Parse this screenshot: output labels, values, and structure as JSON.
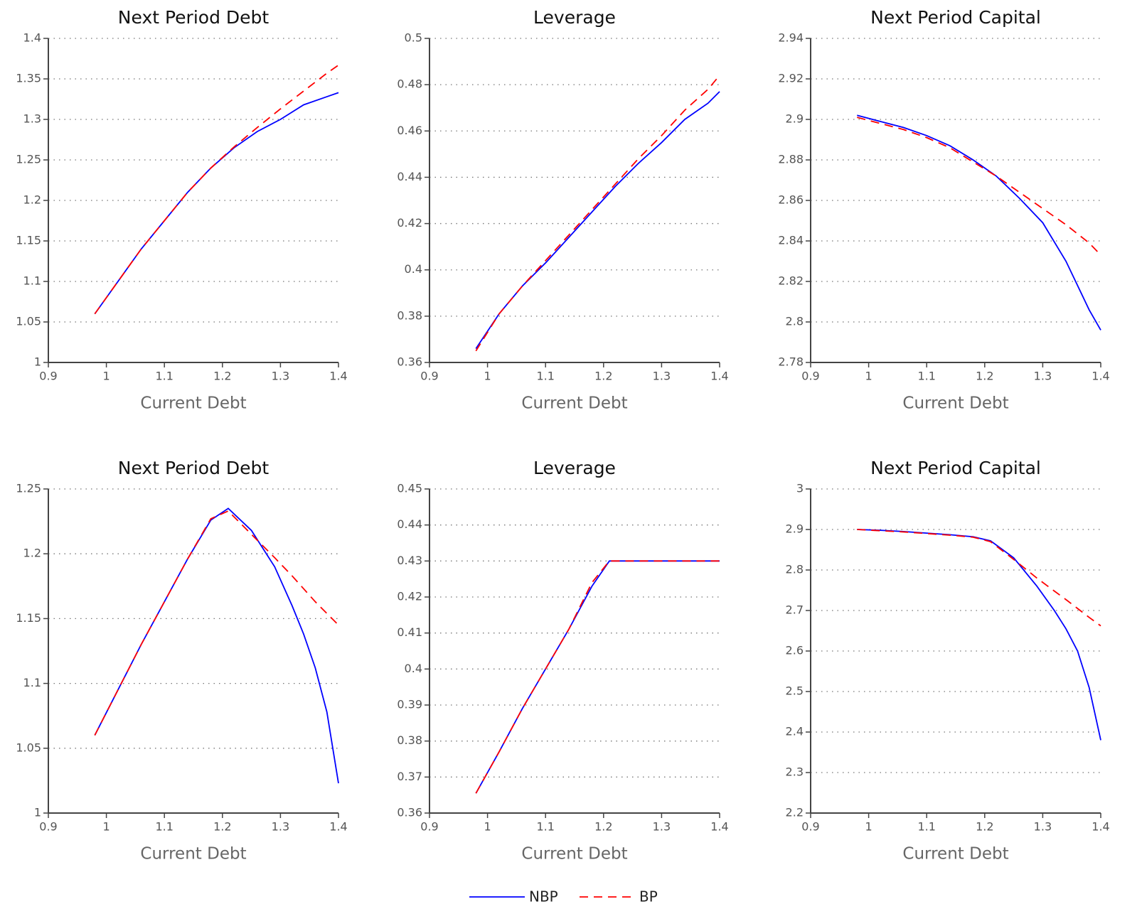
{
  "chart_data": [
    {
      "type": "line",
      "title": "Next Period Debt",
      "x_label": "Current Debt",
      "x": [
        0.98,
        1.02,
        1.06,
        1.1,
        1.14,
        1.18,
        1.22,
        1.26,
        1.3,
        1.34,
        1.38,
        1.4
      ],
      "series": [
        {
          "name": "NBP",
          "color": "#0000ff",
          "dash": "solid",
          "values": [
            1.06,
            1.1,
            1.14,
            1.175,
            1.21,
            1.24,
            1.265,
            1.285,
            1.3,
            1.318,
            1.328,
            1.333
          ]
        },
        {
          "name": "BP",
          "color": "#ff0000",
          "dash": "dashed",
          "values": [
            1.06,
            1.1,
            1.14,
            1.175,
            1.21,
            1.24,
            1.266,
            1.29,
            1.313,
            1.335,
            1.357,
            1.367
          ]
        }
      ],
      "xlim": [
        0.9,
        1.4
      ],
      "xticks": [
        0.9,
        1,
        1.1,
        1.2,
        1.3,
        1.4
      ],
      "ylim": [
        1,
        1.4
      ],
      "yticks": [
        1,
        1.05,
        1.1,
        1.15,
        1.2,
        1.25,
        1.3,
        1.35,
        1.4
      ],
      "grid": true
    },
    {
      "type": "line",
      "title": "Leverage",
      "x_label": "Current Debt",
      "x": [
        0.98,
        1.02,
        1.06,
        1.1,
        1.14,
        1.18,
        1.22,
        1.26,
        1.3,
        1.34,
        1.38,
        1.4
      ],
      "series": [
        {
          "name": "NBP",
          "color": "#0000ff",
          "dash": "solid",
          "values": [
            0.366,
            0.381,
            0.393,
            0.403,
            0.414,
            0.425,
            0.436,
            0.446,
            0.455,
            0.465,
            0.472,
            0.477
          ]
        },
        {
          "name": "BP",
          "color": "#ff0000",
          "dash": "dashed",
          "values": [
            0.365,
            0.381,
            0.393,
            0.404,
            0.415,
            0.426,
            0.437,
            0.448,
            0.458,
            0.469,
            0.478,
            0.484
          ]
        }
      ],
      "xlim": [
        0.9,
        1.4
      ],
      "xticks": [
        0.9,
        1,
        1.1,
        1.2,
        1.3,
        1.4
      ],
      "ylim": [
        0.36,
        0.5
      ],
      "yticks": [
        0.36,
        0.38,
        0.4,
        0.42,
        0.44,
        0.46,
        0.48,
        0.5
      ],
      "grid": true
    },
    {
      "type": "line",
      "title": "Next Period Capital",
      "x_label": "Current Debt",
      "x": [
        0.98,
        1.02,
        1.06,
        1.1,
        1.14,
        1.18,
        1.22,
        1.26,
        1.3,
        1.34,
        1.38,
        1.4
      ],
      "series": [
        {
          "name": "NBP",
          "color": "#0000ff",
          "dash": "solid",
          "values": [
            2.902,
            2.899,
            2.896,
            2.892,
            2.887,
            2.88,
            2.872,
            2.861,
            2.849,
            2.83,
            2.806,
            2.796
          ]
        },
        {
          "name": "BP",
          "color": "#ff0000",
          "dash": "dashed",
          "values": [
            2.901,
            2.898,
            2.895,
            2.891,
            2.886,
            2.879,
            2.872,
            2.864,
            2.856,
            2.848,
            2.839,
            2.833
          ]
        }
      ],
      "xlim": [
        0.9,
        1.4
      ],
      "xticks": [
        0.9,
        1,
        1.1,
        1.2,
        1.3,
        1.4
      ],
      "ylim": [
        2.78,
        2.94
      ],
      "yticks": [
        2.78,
        2.8,
        2.82,
        2.84,
        2.86,
        2.88,
        2.9,
        2.92,
        2.94
      ],
      "grid": true
    },
    {
      "type": "line",
      "title": "Next Period Debt",
      "x_label": "Current Debt",
      "x": [
        0.98,
        1.02,
        1.06,
        1.1,
        1.14,
        1.18,
        1.21,
        1.25,
        1.29,
        1.32,
        1.34,
        1.36,
        1.38,
        1.4
      ],
      "series": [
        {
          "name": "NBP",
          "color": "#0000ff",
          "dash": "solid",
          "values": [
            1.06,
            1.095,
            1.13,
            1.163,
            1.196,
            1.226,
            1.235,
            1.218,
            1.19,
            1.16,
            1.138,
            1.112,
            1.078,
            1.023
          ]
        },
        {
          "name": "BP",
          "color": "#ff0000",
          "dash": "dashed",
          "values": [
            1.06,
            1.095,
            1.13,
            1.163,
            1.196,
            1.227,
            1.233,
            1.215,
            1.197,
            1.183,
            1.173,
            1.163,
            1.154,
            1.145
          ]
        }
      ],
      "xlim": [
        0.9,
        1.4
      ],
      "xticks": [
        0.9,
        1,
        1.1,
        1.2,
        1.3,
        1.4
      ],
      "ylim": [
        1,
        1.25
      ],
      "yticks": [
        1,
        1.05,
        1.1,
        1.15,
        1.2,
        1.25
      ],
      "grid": true
    },
    {
      "type": "line",
      "title": "Leverage",
      "x_label": "Current Debt",
      "x": [
        0.98,
        1.02,
        1.06,
        1.1,
        1.14,
        1.18,
        1.21,
        1.3,
        1.4
      ],
      "series": [
        {
          "name": "NBP",
          "color": "#0000ff",
          "dash": "solid",
          "values": [
            0.3655,
            0.377,
            0.389,
            0.4,
            0.411,
            0.423,
            0.43,
            0.43,
            0.43
          ]
        },
        {
          "name": "BP",
          "color": "#ff0000",
          "dash": "dashed",
          "values": [
            0.3655,
            0.377,
            0.389,
            0.4,
            0.411,
            0.424,
            0.43,
            0.43,
            0.43
          ]
        }
      ],
      "xlim": [
        0.9,
        1.4
      ],
      "xticks": [
        0.9,
        1,
        1.1,
        1.2,
        1.3,
        1.4
      ],
      "ylim": [
        0.36,
        0.45
      ],
      "yticks": [
        0.36,
        0.37,
        0.38,
        0.39,
        0.4,
        0.41,
        0.42,
        0.43,
        0.44,
        0.45
      ],
      "grid": true
    },
    {
      "type": "line",
      "title": "Next Period Capital",
      "x_label": "Current Debt",
      "x": [
        0.98,
        1.02,
        1.06,
        1.1,
        1.14,
        1.18,
        1.21,
        1.25,
        1.29,
        1.32,
        1.34,
        1.36,
        1.38,
        1.4
      ],
      "series": [
        {
          "name": "NBP",
          "color": "#0000ff",
          "dash": "solid",
          "values": [
            2.9,
            2.898,
            2.895,
            2.891,
            2.887,
            2.882,
            2.872,
            2.83,
            2.76,
            2.7,
            2.655,
            2.6,
            2.51,
            2.38
          ]
        },
        {
          "name": "BP",
          "color": "#ff0000",
          "dash": "dashed",
          "values": [
            2.9,
            2.897,
            2.894,
            2.89,
            2.886,
            2.881,
            2.87,
            2.826,
            2.78,
            2.748,
            2.727,
            2.705,
            2.683,
            2.662
          ]
        }
      ],
      "xlim": [
        0.9,
        1.4
      ],
      "xticks": [
        0.9,
        1,
        1.1,
        1.2,
        1.3,
        1.4
      ],
      "ylim": [
        2.2,
        3
      ],
      "yticks": [
        2.2,
        2.3,
        2.4,
        2.5,
        2.6,
        2.7,
        2.8,
        2.9,
        3
      ],
      "grid": true
    }
  ]
}
